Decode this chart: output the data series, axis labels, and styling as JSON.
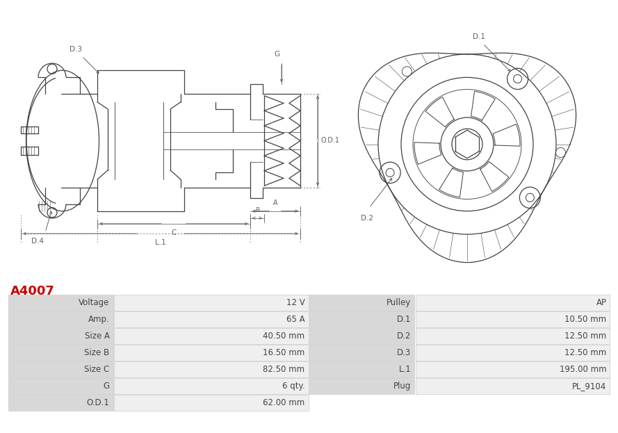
{
  "title": "A4007",
  "title_color": "#cc0000",
  "bg_color": "#ffffff",
  "table_rows": [
    [
      "Voltage",
      "12 V",
      "Pulley",
      "AP"
    ],
    [
      "Amp.",
      "65 A",
      "D.1",
      "10.50 mm"
    ],
    [
      "Size A",
      "40.50 mm",
      "D.2",
      "12.50 mm"
    ],
    [
      "Size B",
      "16.50 mm",
      "D.3",
      "12.50 mm"
    ],
    [
      "Size C",
      "82.50 mm",
      "L.1",
      "195.00 mm"
    ],
    [
      "G",
      "6 qty.",
      "Plug",
      "PL_9104"
    ],
    [
      "O.D.1",
      "62.00 mm",
      "",
      ""
    ]
  ],
  "col_header_bg": "#d8d8d8",
  "col_value_bg": "#efefef",
  "table_text_color": "#444444",
  "diagram_line_color": "#404040",
  "dim_color": "#606060"
}
